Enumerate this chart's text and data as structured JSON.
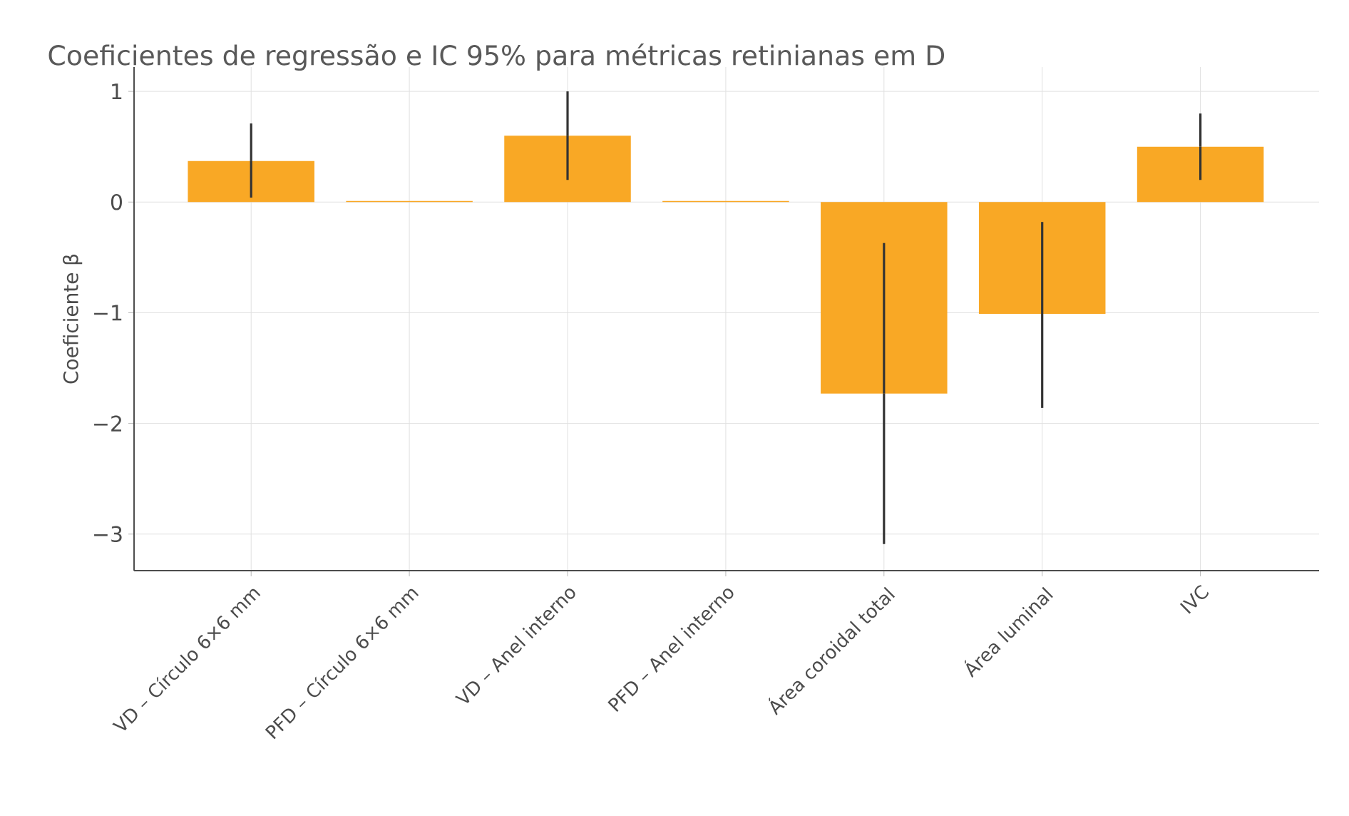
{
  "chart_data": {
    "type": "bar",
    "title": "Coeficientes de regressão e IC 95% para métricas retinianas em D",
    "ylabel": "Coeficiente β",
    "categories": [
      "VD – Círculo 6×6 mm",
      "PFD – Círculo 6×6 mm",
      "VD – Anel interno",
      "PFD – Anel interno",
      "Área coroidal total",
      "Área luminal",
      "IVC"
    ],
    "values": [
      0.37,
      0.01,
      0.6,
      0.01,
      -1.73,
      -1.01,
      0.5
    ],
    "errors": [
      [
        0.04,
        0.71
      ],
      null,
      [
        0.2,
        1.0
      ],
      null,
      [
        -3.09,
        -0.37
      ],
      [
        -1.86,
        -0.18
      ],
      [
        0.2,
        0.8
      ]
    ],
    "color": "#f9a825",
    "ylim": [
      -3.33,
      1.22
    ],
    "yticks": [
      {
        "value": -3,
        "label": "−3"
      },
      {
        "value": -2,
        "label": "−2"
      },
      {
        "value": -1,
        "label": "−1"
      },
      0,
      1
    ],
    "grid": true
  }
}
